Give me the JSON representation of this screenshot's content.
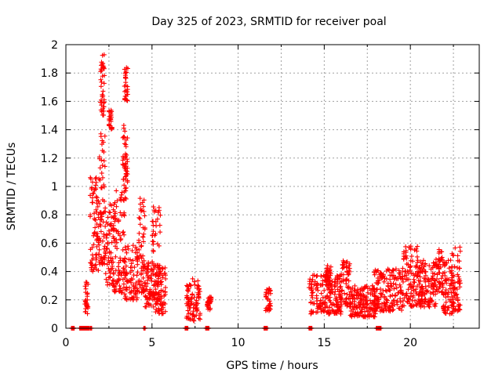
{
  "chart_data": {
    "type": "scatter",
    "title": "Day 325 of 2023, SRMTID for receiver poal",
    "xlabel": "GPS time / hours",
    "ylabel": "SRMTID / TECUs",
    "xlim": [
      0,
      24
    ],
    "ylim": [
      0,
      2
    ],
    "xticks": [
      "0",
      "5",
      "10",
      "15",
      "20"
    ],
    "yticks": [
      "0",
      "0.2",
      "0.4",
      "0.6",
      "0.8",
      "1",
      "1.2",
      "1.4",
      "1.6",
      "1.8",
      "2"
    ],
    "grid": true,
    "marker": "+",
    "series_color": "#ff0000",
    "clusters": [
      {
        "x": [
          0.3,
          0.5
        ],
        "y": [
          0.0,
          0.0
        ]
      },
      {
        "x": [
          0.8,
          1.5
        ],
        "y": [
          0.0,
          0.0
        ]
      },
      {
        "x": [
          1.1,
          1.3
        ],
        "y": [
          0.1,
          0.33
        ]
      },
      {
        "x": [
          1.4,
          1.9
        ],
        "y": [
          0.4,
          1.07
        ]
      },
      {
        "x": [
          1.9,
          2.3
        ],
        "y": [
          0.45,
          1.4
        ]
      },
      {
        "x": [
          2.0,
          2.25
        ],
        "y": [
          1.5,
          1.93
        ]
      },
      {
        "x": [
          2.3,
          2.8
        ],
        "y": [
          0.3,
          0.9
        ]
      },
      {
        "x": [
          2.5,
          2.7
        ],
        "y": [
          1.4,
          1.55
        ]
      },
      {
        "x": [
          2.8,
          3.4
        ],
        "y": [
          0.25,
          1.0
        ]
      },
      {
        "x": [
          3.3,
          3.6
        ],
        "y": [
          0.9,
          1.45
        ]
      },
      {
        "x": [
          3.4,
          3.6
        ],
        "y": [
          1.6,
          1.85
        ]
      },
      {
        "x": [
          3.4,
          4.2
        ],
        "y": [
          0.2,
          0.6
        ]
      },
      {
        "x": [
          4.2,
          4.6
        ],
        "y": [
          0.25,
          0.92
        ]
      },
      {
        "x": [
          4.5,
          4.6
        ],
        "y": [
          0.0,
          0.0
        ]
      },
      {
        "x": [
          4.6,
          5.1
        ],
        "y": [
          0.15,
          0.5
        ]
      },
      {
        "x": [
          5.0,
          5.5
        ],
        "y": [
          0.2,
          0.86
        ]
      },
      {
        "x": [
          5.2,
          5.8
        ],
        "y": [
          0.1,
          0.45
        ]
      },
      {
        "x": [
          6.9,
          7.1
        ],
        "y": [
          0.0,
          0.0
        ]
      },
      {
        "x": [
          7.0,
          7.8
        ],
        "y": [
          0.05,
          0.35
        ]
      },
      {
        "x": [
          8.1,
          8.3
        ],
        "y": [
          0.0,
          0.0
        ]
      },
      {
        "x": [
          8.2,
          8.5
        ],
        "y": [
          0.13,
          0.22
        ]
      },
      {
        "x": [
          11.5,
          11.7
        ],
        "y": [
          0.0,
          0.0
        ]
      },
      {
        "x": [
          11.6,
          11.9
        ],
        "y": [
          0.12,
          0.28
        ]
      },
      {
        "x": [
          14.1,
          14.3
        ],
        "y": [
          0.0,
          0.0
        ]
      },
      {
        "x": [
          14.1,
          16.0
        ],
        "y": [
          0.1,
          0.38
        ]
      },
      {
        "x": [
          15.1,
          15.4
        ],
        "y": [
          0.3,
          0.45
        ]
      },
      {
        "x": [
          16.0,
          16.5
        ],
        "y": [
          0.15,
          0.48
        ]
      },
      {
        "x": [
          16.5,
          18.0
        ],
        "y": [
          0.08,
          0.3
        ]
      },
      {
        "x": [
          18.0,
          18.3
        ],
        "y": [
          0.0,
          0.0
        ]
      },
      {
        "x": [
          17.8,
          19.5
        ],
        "y": [
          0.12,
          0.42
        ]
      },
      {
        "x": [
          19.5,
          20.5
        ],
        "y": [
          0.15,
          0.58
        ]
      },
      {
        "x": [
          20.5,
          21.5
        ],
        "y": [
          0.15,
          0.48
        ]
      },
      {
        "x": [
          21.3,
          21.9
        ],
        "y": [
          0.25,
          0.56
        ]
      },
      {
        "x": [
          21.9,
          22.5
        ],
        "y": [
          0.1,
          0.48
        ]
      },
      {
        "x": [
          22.4,
          22.9
        ],
        "y": [
          0.12,
          0.58
        ]
      }
    ]
  }
}
